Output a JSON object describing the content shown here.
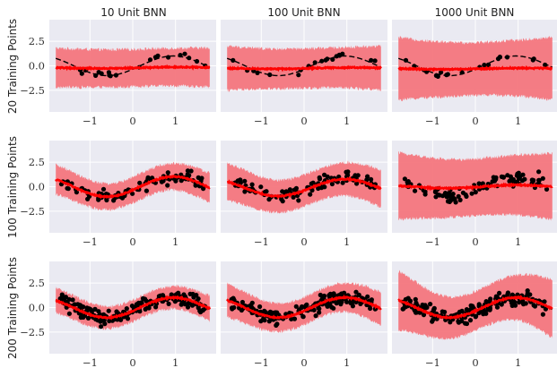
{
  "figure": {
    "column_titles": [
      "10 Unit BNN",
      "100 Unit BNN",
      "1000 Unit BNN"
    ],
    "row_labels": [
      "20 Training Points",
      "100 Training Points",
      "200 Training Points"
    ]
  },
  "style": {
    "panel_bg": "#eaeaf2",
    "grid": "#ffffff",
    "band": "#f4767d",
    "mean": "#ff0000",
    "truth": "#000000",
    "points": "#000000"
  },
  "chart_data": {
    "type": "scatter",
    "description_series": [
      "predictive interval band",
      "predictive mean",
      "true function (dashed)",
      "training points"
    ],
    "x_ticks": [
      -1,
      0,
      1
    ],
    "x_tick_labels": [
      "−1",
      "0",
      "1"
    ],
    "y_ticks": [
      2.5,
      0.0,
      -2.5
    ],
    "y_tick_labels": [
      "2.5",
      "0.0",
      "−2.5"
    ],
    "xlim": [
      -1.95,
      1.95
    ],
    "ylim": [
      -4.7,
      4.7
    ],
    "panels": [
      {
        "row": 0,
        "col": 0,
        "n_points": 20,
        "mean": {
          "a": 0.05,
          "b": -0.2
        },
        "band_half": {
          "base": 1.9,
          "slope": 0.1
        },
        "truth_style": "dashed"
      },
      {
        "row": 0,
        "col": 1,
        "n_points": 20,
        "mean": {
          "a": 0.05,
          "b": -0.25
        },
        "band_half": {
          "base": 2.0,
          "slope": 0.25
        },
        "truth_style": "dashed"
      },
      {
        "row": 0,
        "col": 2,
        "n_points": 20,
        "mean": {
          "a": 0.05,
          "b": -0.3
        },
        "band_half": {
          "base": 2.7,
          "slope": 0.5
        },
        "truth_style": "dashed"
      },
      {
        "row": 1,
        "col": 0,
        "n_points": 100,
        "mean": {
          "a": 1.0,
          "b": 0.0
        },
        "band_half": {
          "base": 1.3,
          "slope": 0.2
        },
        "truth_style": "none"
      },
      {
        "row": 1,
        "col": 1,
        "n_points": 100,
        "mean": {
          "a": 0.85,
          "b": -0.1
        },
        "band_half": {
          "base": 1.6,
          "slope": 0.3
        },
        "truth_style": "none"
      },
      {
        "row": 1,
        "col": 2,
        "n_points": 100,
        "mean": {
          "a": 0.15,
          "b": 0.0
        },
        "band_half": {
          "base": 2.9,
          "slope": 0.5
        },
        "truth_style": "none"
      },
      {
        "row": 2,
        "col": 0,
        "n_points": 200,
        "mean": {
          "a": 1.0,
          "b": 0.0
        },
        "band_half": {
          "base": 1.1,
          "slope": 0.2
        },
        "truth_style": "solid"
      },
      {
        "row": 2,
        "col": 1,
        "n_points": 200,
        "mean": {
          "a": 1.0,
          "b": 0.0
        },
        "band_half": {
          "base": 1.4,
          "slope": 0.3
        },
        "truth_style": "solid"
      },
      {
        "row": 2,
        "col": 2,
        "n_points": 200,
        "mean": {
          "a": 1.0,
          "b": 0.0
        },
        "band_half": {
          "base": 2.0,
          "slope": 1.0
        },
        "truth_style": "solid"
      }
    ]
  }
}
